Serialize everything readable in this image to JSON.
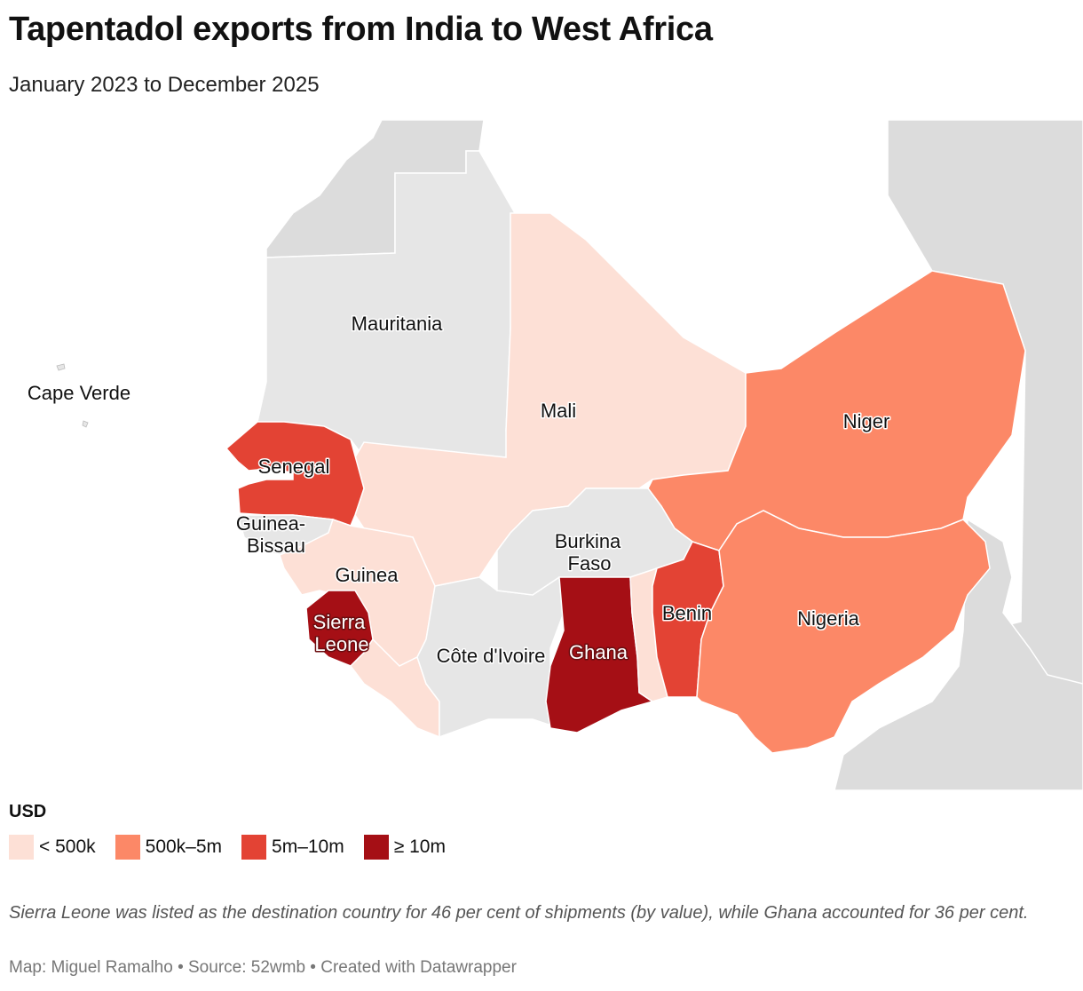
{
  "header": {
    "title": "Tapentadol exports from India to West Africa",
    "subtitle": "January 2023 to December 2025"
  },
  "legend": {
    "title": "USD",
    "items": [
      {
        "label": "< 500k",
        "color": "#fde0d6"
      },
      {
        "label": "500k–5m",
        "color": "#fc8867"
      },
      {
        "label": "5m–10m",
        "color": "#e34334"
      },
      {
        "label": "≥ 10m",
        "color": "#a50f15"
      }
    ]
  },
  "colors": {
    "background_land": "#dcdcdc",
    "no_data_land": "#e6e6e6",
    "border": "#ffffff"
  },
  "countries": {
    "mauritania": {
      "name": "Mauritania",
      "bin": "none"
    },
    "cape_verde": {
      "name": "Cape Verde",
      "bin": "none"
    },
    "mali": {
      "name": "Mali",
      "bin": "< 500k"
    },
    "niger": {
      "name": "Niger",
      "bin": "500k–5m"
    },
    "senegal": {
      "name": "Senegal",
      "bin": "5m–10m"
    },
    "guinea_bissau_line1": "Guinea-",
    "guinea_bissau_line2": "Bissau",
    "guinea": {
      "name": "Guinea",
      "bin": "< 500k"
    },
    "burkina_line1": "Burkina",
    "burkina_line2": "Faso",
    "sierra_line1": "Sierra",
    "sierra_line2": "Leone",
    "benin": {
      "name": "Benin",
      "bin": "5m–10m"
    },
    "nigeria": {
      "name": "Nigeria",
      "bin": "500k–5m"
    },
    "cote_divoire": {
      "name": "Côte d'Ivoire",
      "bin": "none"
    },
    "ghana": {
      "name": "Ghana",
      "bin": "≥ 10m"
    }
  },
  "note": "Sierra Leone was listed as the destination country for 46 per cent of shipments (by value), while Ghana accounted for 36 per cent.",
  "byline": "Map: Miguel Ramalho • Source: 52wmb • Created with Datawrapper"
}
